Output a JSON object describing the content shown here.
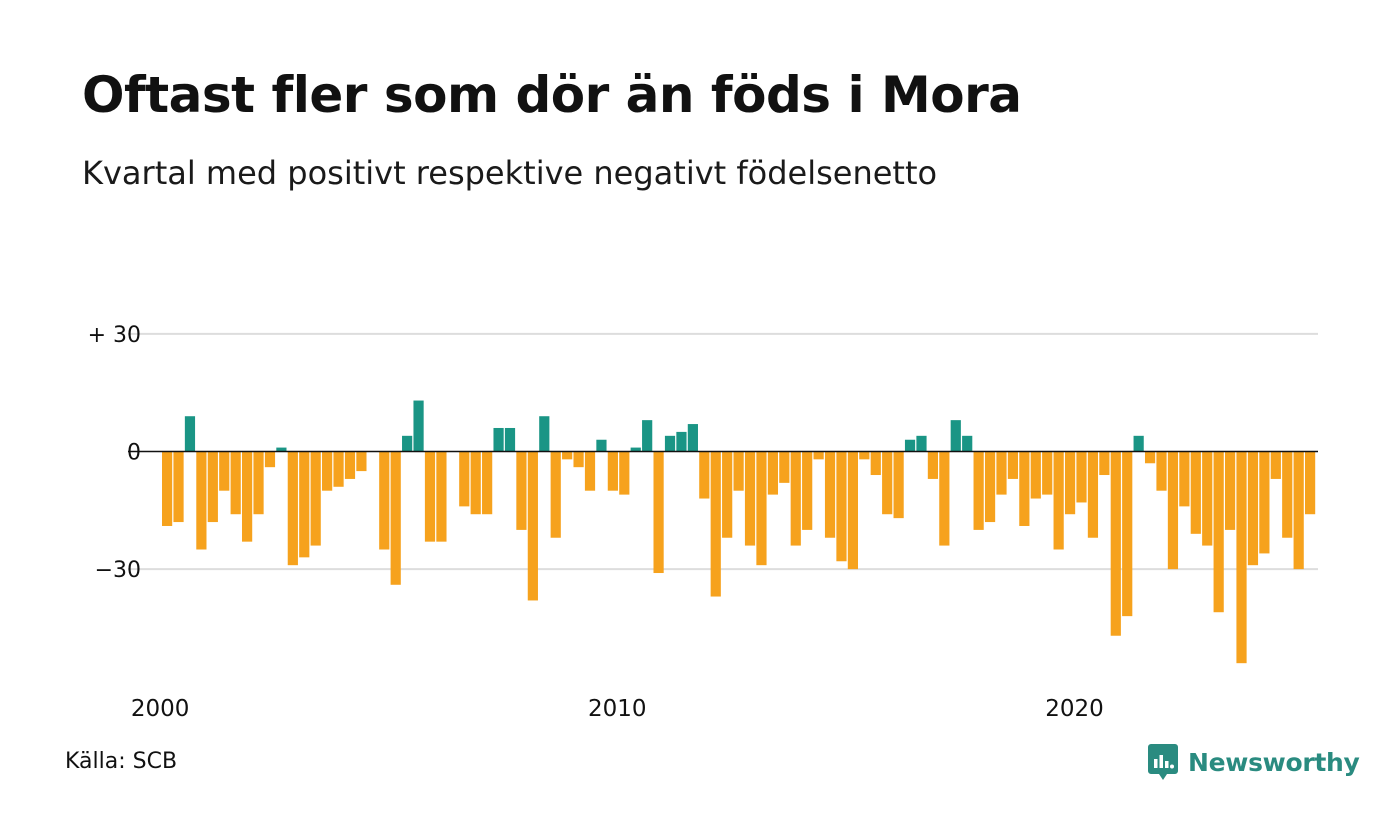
{
  "title": "Oftast fler som dör än föds i Mora",
  "subtitle": "Kvartal med positivt respektive negativt födelsenetto",
  "source": "Källa: SCB",
  "brand": "Newsworthy",
  "colors": {
    "positive": "#1a9585",
    "negative": "#f6a21d",
    "brand": "#2a8b80",
    "grid": "#dddddd",
    "zero": "#111111"
  },
  "chart_data": {
    "type": "bar",
    "start_year": 2000,
    "periods_per_year": 4,
    "ylim": [
      -55,
      30
    ],
    "ytick_labels": [
      {
        "value": 30,
        "label": "+ 30"
      },
      {
        "value": 0,
        "label": "0"
      },
      {
        "value": -30,
        "label": "−30"
      }
    ],
    "xtick_labels": [
      {
        "year": 2000,
        "label": "2000"
      },
      {
        "year": 2010,
        "label": "2010"
      },
      {
        "year": 2020,
        "label": "2020"
      }
    ],
    "grid": true,
    "values": [
      -19,
      -18,
      9,
      -25,
      -18,
      -10,
      -16,
      -23,
      -16,
      -4,
      1,
      -29,
      -27,
      -24,
      -10,
      -9,
      -7,
      -5,
      0,
      -25,
      -34,
      4,
      13,
      -23,
      -23,
      0,
      -14,
      -16,
      -16,
      6,
      6,
      -20,
      -38,
      9,
      -22,
      -2,
      -4,
      -10,
      3,
      -10,
      -11,
      1,
      8,
      -31,
      4,
      5,
      7,
      -12,
      -37,
      -22,
      -10,
      -24,
      -29,
      -11,
      -8,
      -24,
      -20,
      -2,
      -22,
      -28,
      -30,
      -2,
      -6,
      -16,
      -17,
      3,
      4,
      -7,
      -24,
      8,
      4,
      -20,
      -18,
      -11,
      -7,
      -19,
      -12,
      -11,
      -25,
      -16,
      -13,
      -22,
      -6,
      -47,
      -42,
      4,
      -3,
      -10,
      -30,
      -14,
      -21,
      -24,
      -41,
      -20,
      -54,
      -29,
      -26,
      -7,
      -22,
      -30,
      -16
    ]
  }
}
